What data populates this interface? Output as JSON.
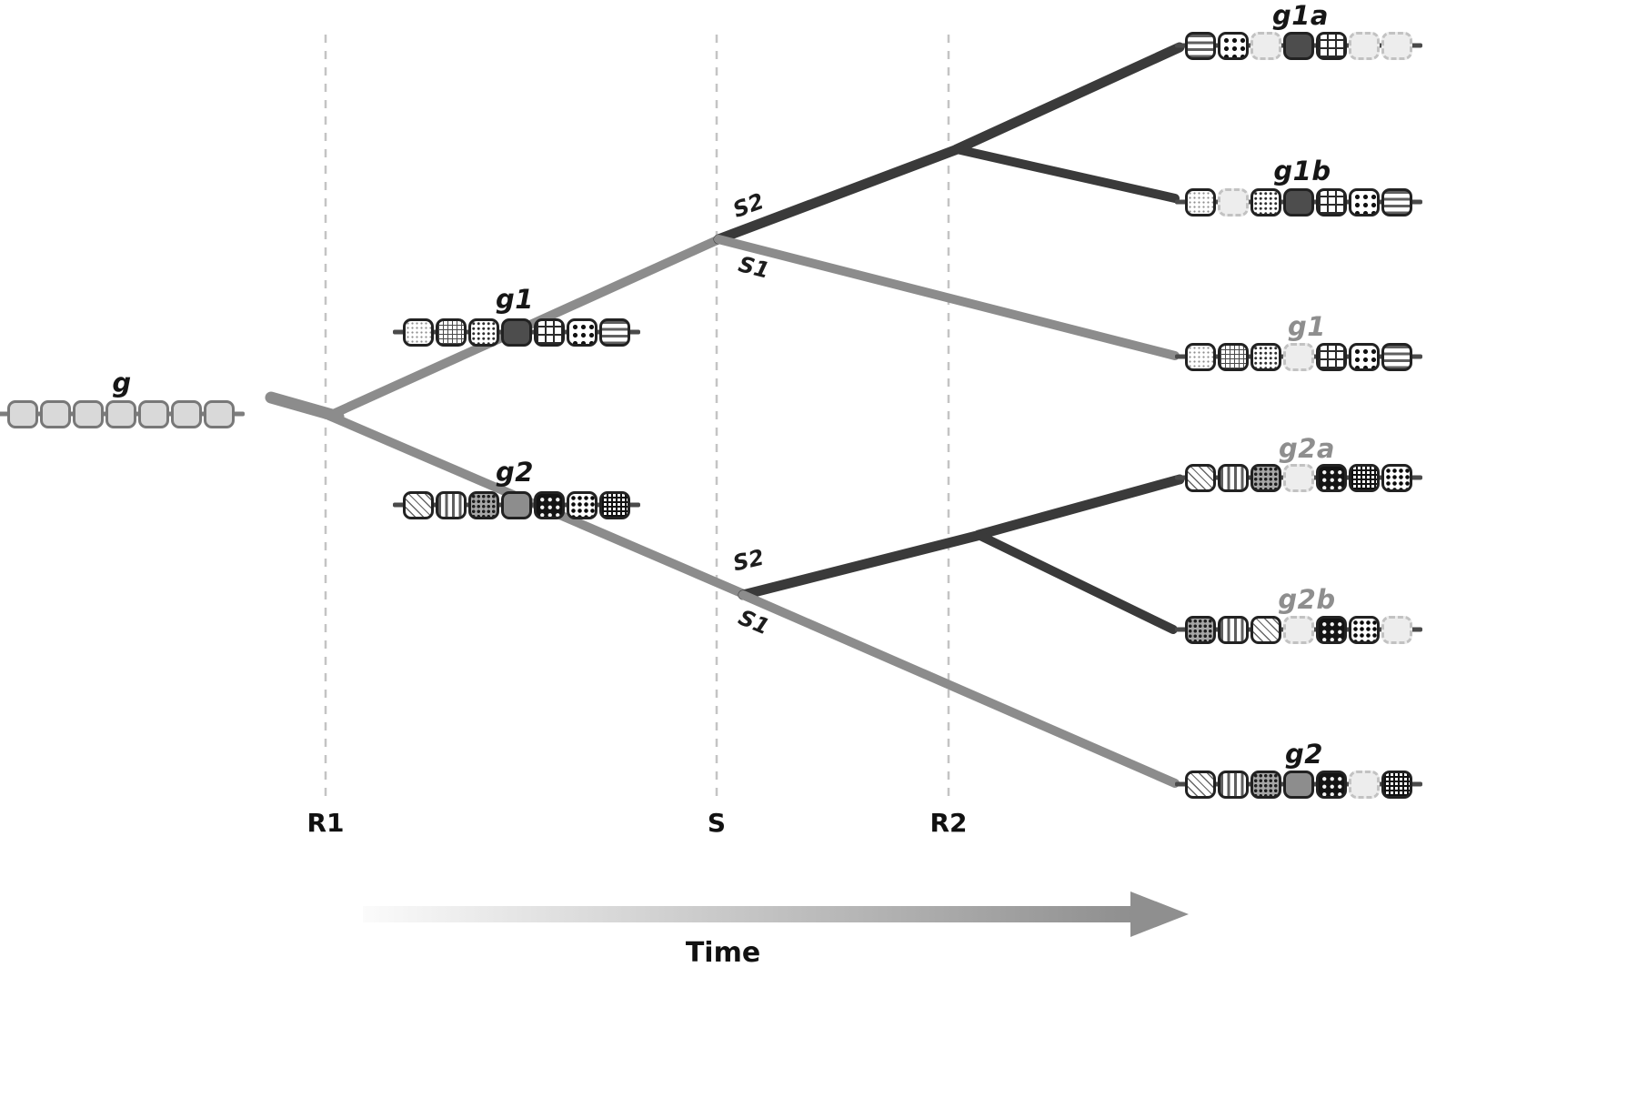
{
  "colors": {
    "branch_gray": "#8c8c8c",
    "branch_dark": "#3a3a3a",
    "dashed_line": "#c4c4c4",
    "label_dark": "#161616",
    "label_gray": "#8e8e8e"
  },
  "genes": {
    "g": {
      "label": "g",
      "exons": [
        "plain",
        "plain",
        "plain",
        "plain",
        "plain",
        "plain",
        "plain"
      ]
    },
    "g1_mid": {
      "label": "g1",
      "exons": [
        "stipple",
        "crosshatch",
        "dots",
        "soliddark",
        "grid",
        "polka",
        "hstripes"
      ]
    },
    "g2_mid": {
      "label": "g2",
      "exons": [
        "diag",
        "vstripes",
        "darkdots",
        "solidgray",
        "stars",
        "polka-dark",
        "darkgrid"
      ]
    },
    "g1a": {
      "label": "g1a",
      "exons": [
        "hstripes",
        "polka",
        "faded",
        "soliddark",
        "grid",
        "faded",
        "faded"
      ]
    },
    "g1b": {
      "label": "g1b",
      "exons": [
        "stipple",
        "faded",
        "dots",
        "soliddark",
        "grid",
        "polka",
        "hstripes"
      ]
    },
    "g1_right": {
      "label": "g1",
      "exons": [
        "stipple",
        "crosshatch",
        "dots",
        "faded",
        "grid",
        "polka",
        "hstripes"
      ]
    },
    "g2a": {
      "label": "g2a",
      "exons": [
        "diag",
        "vstripes",
        "darkdots",
        "faded",
        "stars",
        "darkgrid",
        "polka-dark"
      ]
    },
    "g2b": {
      "label": "g2b",
      "exons": [
        "darkdots",
        "vstripes",
        "diag",
        "faded",
        "stars",
        "polka-dark",
        "faded"
      ]
    },
    "g2_right": {
      "label": "g2",
      "exons": [
        "diag",
        "vstripes",
        "darkdots",
        "solidgray",
        "stars",
        "faded",
        "darkgrid"
      ]
    }
  },
  "events": {
    "r1": "R1",
    "s": "S",
    "r2": "R2"
  },
  "speciation_labels": {
    "s2_upper": "S2",
    "s1_upper": "S1",
    "s2_lower": "S2",
    "s1_lower": "S1"
  },
  "axis": {
    "time": "Time"
  }
}
